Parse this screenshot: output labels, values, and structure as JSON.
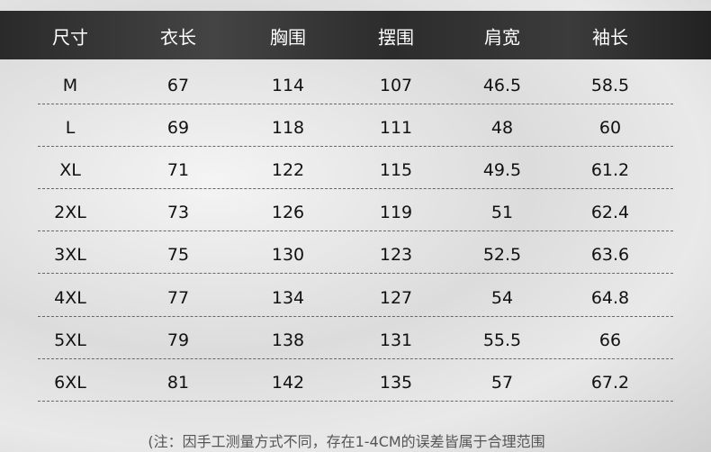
{
  "table": {
    "header": [
      "尺寸",
      "衣长",
      "胸围",
      "摆围",
      "肩宽",
      "袖长"
    ],
    "rows": [
      [
        "M",
        "67",
        "114",
        "107",
        "46.5",
        "58.5"
      ],
      [
        "L",
        "69",
        "118",
        "111",
        "48",
        "60"
      ],
      [
        "XL",
        "71",
        "122",
        "115",
        "49.5",
        "61.2"
      ],
      [
        "2XL",
        "73",
        "126",
        "119",
        "51",
        "62.4"
      ],
      [
        "3XL",
        "75",
        "130",
        "123",
        "52.5",
        "63.6"
      ],
      [
        "4XL",
        "77",
        "134",
        "127",
        "54",
        "64.8"
      ],
      [
        "5XL",
        "79",
        "138",
        "131",
        "55.5",
        "66"
      ],
      [
        "6XL",
        "81",
        "142",
        "135",
        "57",
        "67.2"
      ]
    ]
  },
  "note": "(注：因手工测量方式不同，存在1-4CM的误差皆属于合理范围"
}
